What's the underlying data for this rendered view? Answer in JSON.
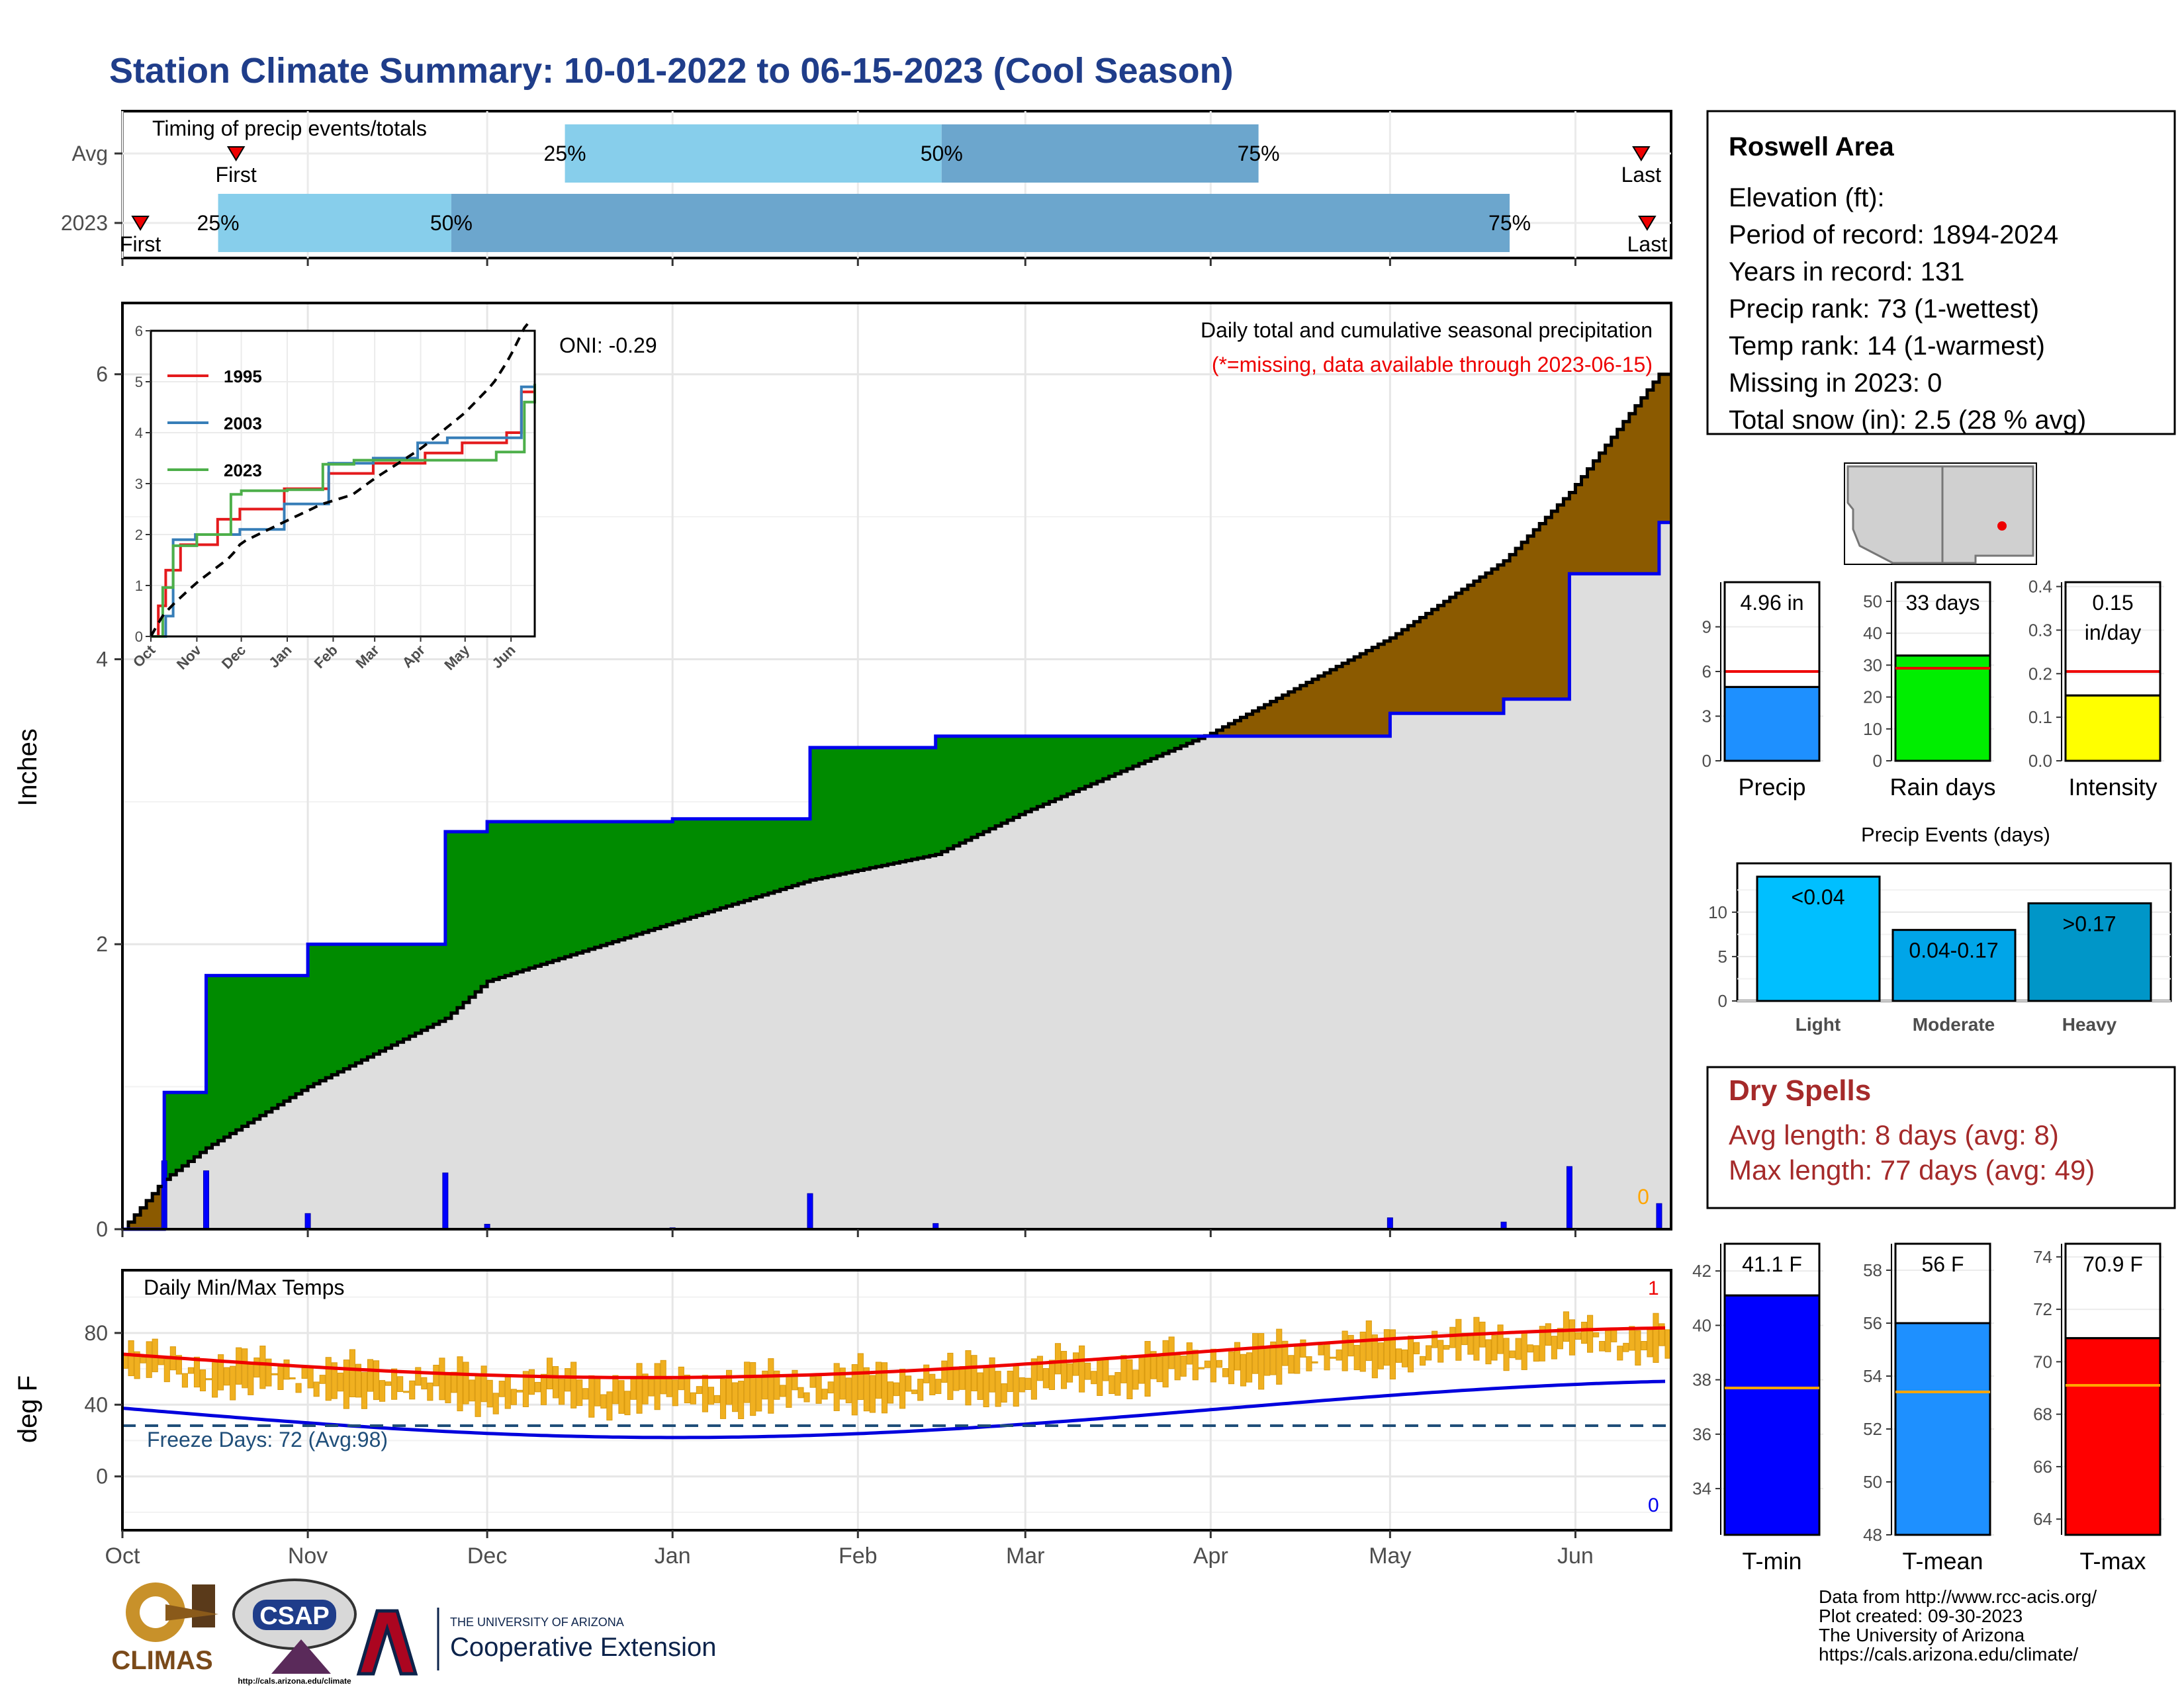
{
  "title": "Station Climate Summary: 10-01-2022 to 06-15-2023 (Cool Season)",
  "timing": {
    "label": "Timing of precip events/totals",
    "rows": [
      {
        "name": "Avg",
        "first": "First",
        "last": "Last",
        "p25": "25%",
        "p50": "50%",
        "p75": "75%"
      },
      {
        "name": "2023",
        "first": "First",
        "last": "Last",
        "p25": "25%",
        "p50": "50%",
        "p75": "75%"
      }
    ]
  },
  "precip_panel": {
    "ylabel": "Inches",
    "yticks": [
      "0",
      "2",
      "4",
      "6"
    ],
    "oni": "ONI: -0.29",
    "desc": "Daily total and cumulative seasonal precipitation",
    "missing_note": "(*=missing, data available through 2023-06-15)",
    "missing_count": "0"
  },
  "inset": {
    "yticks": [
      "0",
      "1",
      "2",
      "3",
      "4",
      "5",
      "6"
    ],
    "xticks": [
      "Oct",
      "Nov",
      "Dec",
      "Jan",
      "Feb",
      "Mar",
      "Apr",
      "May",
      "Jun"
    ],
    "legend": [
      {
        "name": "1995",
        "color": "#e41a1c"
      },
      {
        "name": "2003",
        "color": "#377eb8"
      },
      {
        "name": "2023",
        "color": "#4daf4a"
      }
    ]
  },
  "temp_panel": {
    "ylabel": "deg F",
    "yticks": [
      "0",
      "40",
      "80"
    ],
    "label": "Daily Min/Max Temps",
    "freeze": "Freeze Days: 72 (Avg:98)",
    "record_max_count": "1",
    "record_min_count": "0"
  },
  "xaxis": [
    "Oct",
    "Nov",
    "Dec",
    "Jan",
    "Feb",
    "Mar",
    "Apr",
    "May",
    "Jun"
  ],
  "info": {
    "station": "Roswell Area",
    "elevation": "Elevation (ft):",
    "period": "Period of record: 1894-2024",
    "years": "Years in record: 131",
    "precip_rank": "Precip rank: 73 (1-wettest)",
    "temp_rank": "Temp rank: 14 (1-warmest)",
    "missing": "Missing in 2023: 0",
    "snow": "Total snow (in): 2.5 (28 % avg)"
  },
  "precip_bars": [
    {
      "label": "Precip",
      "value_text": "4.96 in",
      "value": 4.96,
      "avg": 6.0,
      "max": 12,
      "ticks": [
        "0",
        "3",
        "6",
        "9"
      ],
      "tick_values": [
        0,
        3,
        6,
        9
      ],
      "color": "#1e90ff"
    },
    {
      "label": "Rain days",
      "value_text": "33 days",
      "value": 33,
      "avg": 29,
      "max": 56,
      "ticks": [
        "0",
        "10",
        "20",
        "30",
        "40",
        "50"
      ],
      "tick_values": [
        0,
        10,
        20,
        30,
        40,
        50
      ],
      "color": "#00ee00"
    },
    {
      "label": "Intensity",
      "value_text": "0.15",
      "value_text2": "in/day",
      "value": 0.15,
      "avg": 0.205,
      "max": 0.41,
      "ticks": [
        "0.0",
        "0.1",
        "0.2",
        "0.3",
        "0.4"
      ],
      "tick_values": [
        0,
        0.1,
        0.2,
        0.3,
        0.4
      ],
      "color": "#ffff00"
    }
  ],
  "events": {
    "title": "Precip Events (days)",
    "ticks": [
      "0",
      "5",
      "10"
    ],
    "categories": [
      {
        "label": "Light",
        "value": 14,
        "bar_label": "<0.04",
        "color": "#00bfff"
      },
      {
        "label": "Moderate",
        "value": 8,
        "bar_label": "0.04-0.17",
        "color": "#00a5e8"
      },
      {
        "label": "Heavy",
        "value": 11,
        "bar_label": ">0.17",
        "color": "#0096c8"
      }
    ]
  },
  "dry_spells": {
    "title": "Dry Spells",
    "avg_length": "Avg length: 8 days (avg: 8)",
    "max_length": "Max length: 77 days (avg: 49)"
  },
  "temp_bars": [
    {
      "label": "T-min",
      "value_text": "41.1 F",
      "value": 41.1,
      "avg": 37.7,
      "min": 32.3,
      "max": 43.0,
      "ticks": [
        "34",
        "36",
        "38",
        "40",
        "42"
      ],
      "tick_values": [
        34,
        36,
        38,
        40,
        42
      ],
      "color": "#0000ff"
    },
    {
      "label": "T-mean",
      "value_text": "56 F",
      "value": 56.0,
      "avg": 53.4,
      "min": 48.0,
      "max": 59.0,
      "ticks": [
        "48",
        "50",
        "52",
        "54",
        "56",
        "58"
      ],
      "tick_values": [
        48,
        50,
        52,
        54,
        56,
        58
      ],
      "color": "#1e90ff"
    },
    {
      "label": "T-max",
      "value_text": "70.9 F",
      "value": 70.9,
      "avg": 69.1,
      "min": 63.4,
      "max": 74.5,
      "ticks": [
        "64",
        "66",
        "68",
        "70",
        "72",
        "74"
      ],
      "tick_values": [
        64,
        66,
        68,
        70,
        72,
        74
      ],
      "color": "#ff0000"
    }
  ],
  "credits": [
    "Data from http://www.rcc-acis.org/",
    "Plot created: 09-30-2023",
    "The University of Arizona",
    "https://cals.arizona.edu/climate/"
  ],
  "logos": {
    "climas": "CLIMAS",
    "csap": "CSAP",
    "csap_url": "http://cals.arizona.edu/climate",
    "ua_small": "THE UNIVERSITY OF ARIZONA",
    "ua_big": "Cooperative Extension"
  },
  "chart_data": {
    "type": "line",
    "title": "Station Climate Summary: 10-01-2022 to 06-15-2023 (Cool Season)",
    "ylabel": "Inches",
    "ylim": [
      0,
      6.5
    ],
    "x": [
      "2022-10-01",
      "2022-10-08",
      "2022-10-15",
      "2022-11-01",
      "2022-11-24",
      "2022-12-01",
      "2023-01-01",
      "2023-01-24",
      "2023-02-14",
      "2023-03-01",
      "2023-04-01",
      "2023-05-01",
      "2023-05-20",
      "2023-05-31",
      "2023-06-15"
    ],
    "series": [
      {
        "name": "",
        "values": [
          0.0,
          0.96,
          1.78,
          2.0,
          2.79,
          2.86,
          2.88,
          3.38,
          3.46,
          3.46,
          3.46,
          3.62,
          3.72,
          4.6,
          4.96
        ]
      },
      {
        "name": "",
        "values": [
          0.0,
          0.35,
          0.57,
          1.0,
          1.48,
          1.74,
          2.15,
          2.45,
          2.63,
          2.93,
          3.48,
          4.15,
          4.69,
          5.17,
          6.0
        ]
      }
    ],
    "freeze_days": 72,
    "freeze_days_avg": 98
  }
}
